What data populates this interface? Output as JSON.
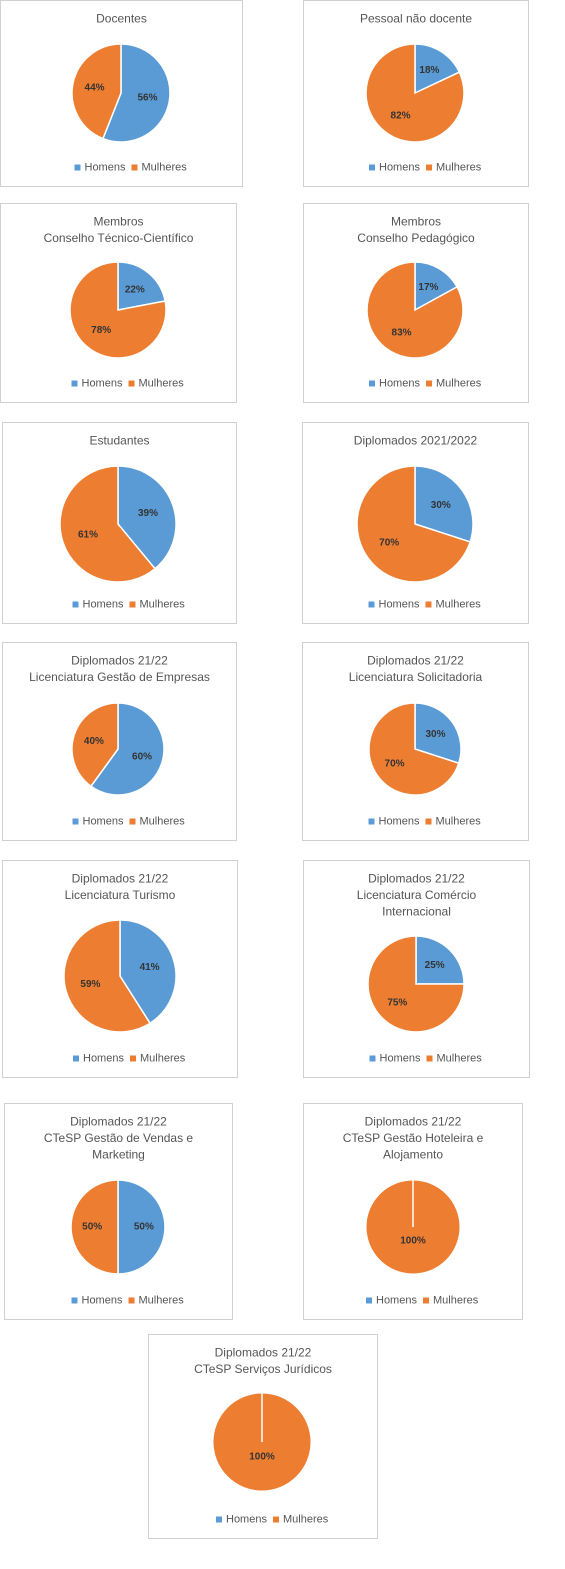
{
  "chart_data": [
    {
      "type": "pie",
      "title": [
        "Docentes"
      ],
      "categories": [
        "Homens",
        "Mulheres"
      ],
      "values": [
        56,
        44
      ],
      "value_labels": [
        "56%",
        "44%"
      ],
      "colors": [
        "#5b9bd5",
        "#ed7d31"
      ]
    },
    {
      "type": "pie",
      "title": [
        "Pessoal não docente"
      ],
      "categories": [
        "Homens",
        "Mulheres"
      ],
      "values": [
        18,
        82
      ],
      "value_labels": [
        "18%",
        "82%"
      ],
      "colors": [
        "#5b9bd5",
        "#ed7d31"
      ]
    },
    {
      "type": "pie",
      "title": [
        "Membros",
        "Conselho Técnico-Científico"
      ],
      "categories": [
        "Homens",
        "Mulheres"
      ],
      "values": [
        22,
        78
      ],
      "value_labels": [
        "22%",
        "78%"
      ],
      "colors": [
        "#5b9bd5",
        "#ed7d31"
      ]
    },
    {
      "type": "pie",
      "title": [
        "Membros",
        "Conselho Pedagógico"
      ],
      "categories": [
        "Homens",
        "Mulheres"
      ],
      "values": [
        17,
        83
      ],
      "value_labels": [
        "17%",
        "83%"
      ],
      "colors": [
        "#5b9bd5",
        "#ed7d31"
      ]
    },
    {
      "type": "pie",
      "title": [
        "Estudantes"
      ],
      "categories": [
        "Homens",
        "Mulheres"
      ],
      "values": [
        39,
        61
      ],
      "value_labels": [
        "39%",
        "61%"
      ],
      "colors": [
        "#5b9bd5",
        "#ed7d31"
      ]
    },
    {
      "type": "pie",
      "title": [
        "Diplomados 2021/2022"
      ],
      "categories": [
        "Homens",
        "Mulheres"
      ],
      "values": [
        30,
        70
      ],
      "value_labels": [
        "30%",
        "70%"
      ],
      "colors": [
        "#5b9bd5",
        "#ed7d31"
      ]
    },
    {
      "type": "pie",
      "title": [
        "Diplomados 21/22",
        "Licenciatura Gestão de Empresas"
      ],
      "categories": [
        "Homens",
        "Mulheres"
      ],
      "values": [
        60,
        40
      ],
      "value_labels": [
        "60%",
        "40%"
      ],
      "colors": [
        "#5b9bd5",
        "#ed7d31"
      ]
    },
    {
      "type": "pie",
      "title": [
        "Diplomados 21/22",
        "Licenciatura Solicitadoria"
      ],
      "categories": [
        "Homens",
        "Mulheres"
      ],
      "values": [
        30,
        70
      ],
      "value_labels": [
        "30%",
        "70%"
      ],
      "colors": [
        "#5b9bd5",
        "#ed7d31"
      ]
    },
    {
      "type": "pie",
      "title": [
        "Diplomados 21/22",
        "Licenciatura Turismo"
      ],
      "categories": [
        "Homens",
        "Mulheres"
      ],
      "values": [
        41,
        59
      ],
      "value_labels": [
        "41%",
        "59%"
      ],
      "colors": [
        "#5b9bd5",
        "#ed7d31"
      ]
    },
    {
      "type": "pie",
      "title": [
        "Diplomados 21/22",
        "Licenciatura Comércio",
        "Internacional"
      ],
      "categories": [
        "Homens",
        "Mulheres"
      ],
      "values": [
        25,
        75
      ],
      "value_labels": [
        "25%",
        "75%"
      ],
      "colors": [
        "#5b9bd5",
        "#ed7d31"
      ]
    },
    {
      "type": "pie",
      "title": [
        "Diplomados 21/22",
        "CTeSP Gestão de Vendas e",
        "Marketing"
      ],
      "categories": [
        "Homens",
        "Mulheres"
      ],
      "values": [
        50,
        50
      ],
      "value_labels": [
        "50%",
        "50%"
      ],
      "colors": [
        "#5b9bd5",
        "#ed7d31"
      ]
    },
    {
      "type": "pie",
      "title": [
        "Diplomados 21/22",
        "CTeSP Gestão Hoteleira e",
        "Alojamento"
      ],
      "categories": [
        "Homens",
        "Mulheres"
      ],
      "values": [
        0,
        100
      ],
      "value_labels": [
        null,
        "100%"
      ],
      "colors": [
        "#5b9bd5",
        "#ed7d31"
      ]
    },
    {
      "type": "pie",
      "title": [
        "Diplomados 21/22",
        "CTeSP  Serviços Jurídicos"
      ],
      "categories": [
        "Homens",
        "Mulheres"
      ],
      "values": [
        0,
        100
      ],
      "value_labels": [
        null,
        "100%"
      ],
      "colors": [
        "#5b9bd5",
        "#ed7d31"
      ]
    }
  ]
}
